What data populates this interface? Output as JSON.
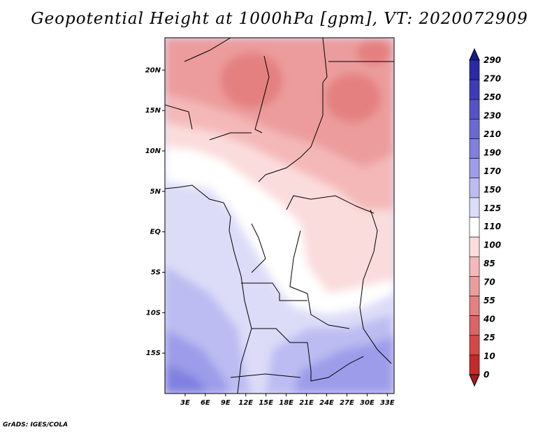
{
  "title": "Geopotential Height at 1000hPa [gpm], VT: 2020072909",
  "credit": "GrADS: IGES/COLA",
  "map": {
    "variable": "Geopotential Height",
    "level": "1000hPa",
    "units": "gpm",
    "valid_time": "2020072909",
    "lon_range": [
      0,
      34
    ],
    "lat_range": [
      -20,
      24
    ],
    "lat_ticks": [
      {
        "value": 20,
        "label": "20N"
      },
      {
        "value": 15,
        "label": "15N"
      },
      {
        "value": 10,
        "label": "10N"
      },
      {
        "value": 5,
        "label": "5N"
      },
      {
        "value": 0,
        "label": "EQ"
      },
      {
        "value": -5,
        "label": "5S"
      },
      {
        "value": -10,
        "label": "10S"
      },
      {
        "value": -15,
        "label": "15S"
      }
    ],
    "lon_ticks": [
      {
        "value": 3,
        "label": "3E"
      },
      {
        "value": 6,
        "label": "6E"
      },
      {
        "value": 9,
        "label": "9E"
      },
      {
        "value": 12,
        "label": "12E"
      },
      {
        "value": 15,
        "label": "15E"
      },
      {
        "value": 18,
        "label": "18E"
      },
      {
        "value": 21,
        "label": "21E"
      },
      {
        "value": 24,
        "label": "24E"
      },
      {
        "value": 27,
        "label": "27E"
      },
      {
        "value": 30,
        "label": "30E"
      },
      {
        "value": 33,
        "label": "33E"
      }
    ]
  },
  "colorbar": {
    "labels": [
      "290",
      "270",
      "250",
      "230",
      "210",
      "190",
      "170",
      "150",
      "125",
      "110",
      "100",
      "85",
      "70",
      "55",
      "40",
      "25",
      "10",
      "0"
    ],
    "colors": [
      "#1a1a8c",
      "#2a2aa8",
      "#3c3cba",
      "#5454c8",
      "#6a6ad4",
      "#8080e0",
      "#9c9cea",
      "#bcbcf2",
      "#dcdcf8",
      "#ffffff",
      "#fbdcdc",
      "#f4b8b8",
      "#ec9c9c",
      "#e48080",
      "#dc6464",
      "#d44848",
      "#c42a2a",
      "#a81a1a"
    ]
  }
}
